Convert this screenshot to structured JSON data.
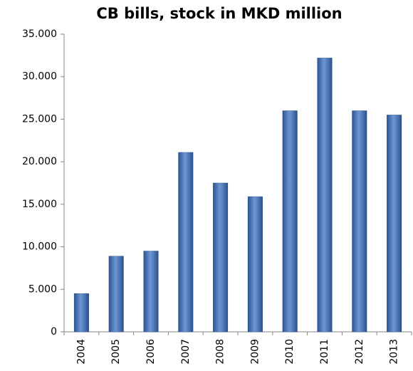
{
  "chart_data": {
    "type": "bar",
    "title": "CB bills, stock in MKD million",
    "categories": [
      "2004",
      "2005",
      "2006",
      "2007",
      "2008",
      "2009",
      "2010",
      "2011",
      "2012",
      "2013"
    ],
    "values": [
      4500,
      8900,
      9500,
      21100,
      17500,
      15900,
      26000,
      32200,
      26000,
      25500
    ],
    "color": "#3b72c4",
    "ylim": [
      0,
      35000
    ],
    "yticks": [
      0,
      {
        "value": 5000,
        "label": "5.000"
      },
      {
        "value": 10000,
        "label": "10.000"
      },
      {
        "value": 15000,
        "label": "15.000"
      },
      {
        "value": 20000,
        "label": "20.000"
      },
      {
        "value": 25000,
        "label": "25.000"
      },
      {
        "value": 30000,
        "label": "30.000"
      },
      {
        "value": 35000,
        "label": "35.000"
      }
    ],
    "grid": false
  }
}
